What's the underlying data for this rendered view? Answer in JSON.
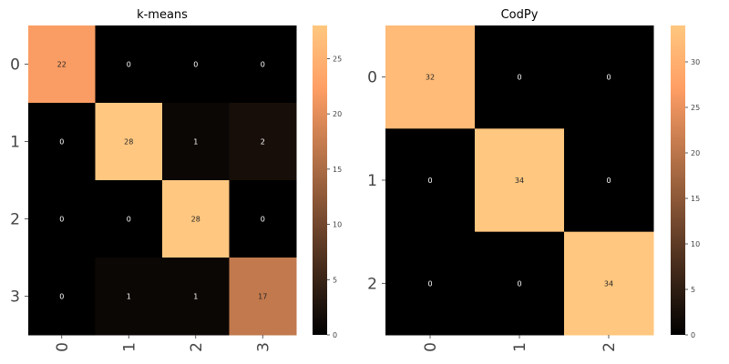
{
  "chart_data": [
    {
      "type": "heatmap",
      "title": "k-means",
      "row_labels": [
        "0",
        "1",
        "2",
        "3"
      ],
      "col_labels": [
        "0",
        "1",
        "2",
        "3"
      ],
      "values": [
        [
          22,
          0,
          0,
          0
        ],
        [
          0,
          28,
          1,
          2
        ],
        [
          0,
          0,
          28,
          0
        ],
        [
          0,
          1,
          1,
          17
        ]
      ],
      "colorbar": {
        "range": [
          0,
          28
        ],
        "ticks": [
          0,
          5,
          10,
          15,
          20,
          25
        ]
      },
      "colormap": "copper"
    },
    {
      "type": "heatmap",
      "title": "CodPy",
      "row_labels": [
        "0",
        "1",
        "2"
      ],
      "col_labels": [
        "0",
        "1",
        "2"
      ],
      "values": [
        [
          32,
          0,
          0
        ],
        [
          0,
          34,
          0
        ],
        [
          0,
          0,
          34
        ]
      ],
      "colorbar": {
        "range": [
          0,
          34
        ],
        "ticks": [
          0,
          5,
          10,
          15,
          20,
          25,
          30
        ]
      },
      "colormap": "copper"
    }
  ]
}
